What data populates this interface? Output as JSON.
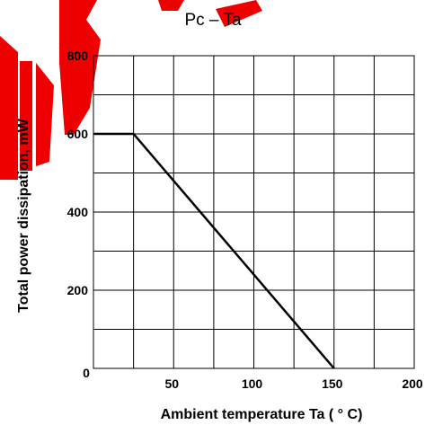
{
  "chart_data": {
    "type": "line",
    "title": "Pc – Ta",
    "xlabel": "Ambient temperature Ta ( ° C)",
    "ylabel": "Total power dissipation, mW",
    "xlim": [
      0,
      200
    ],
    "ylim": [
      0,
      800
    ],
    "x_ticks": [
      50,
      100,
      150,
      200
    ],
    "y_ticks": [
      200,
      400,
      600,
      800
    ],
    "origin_label": "0",
    "grid": true,
    "series": [
      {
        "x": [
          0,
          25,
          150
        ],
        "y": [
          600,
          600,
          0
        ]
      }
    ]
  },
  "watermark": {
    "color": "#ee0000"
  }
}
